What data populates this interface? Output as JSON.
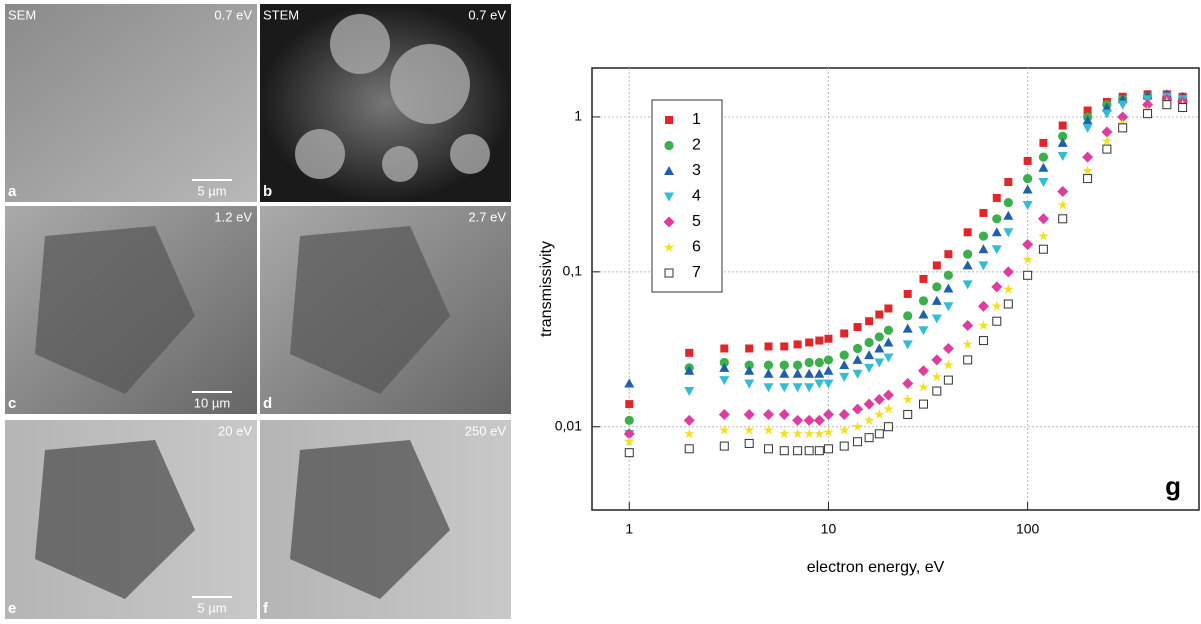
{
  "panels": [
    {
      "letter": "a",
      "mode": "SEM",
      "energy": "0.7 eV",
      "scale": "5 µm"
    },
    {
      "letter": "b",
      "mode": "STEM",
      "energy": "0.7 eV"
    },
    {
      "letter": "c",
      "energy": "1.2 eV",
      "scale": "10 µm"
    },
    {
      "letter": "d",
      "energy": "2.7 eV"
    },
    {
      "letter": "e",
      "energy": "20 eV",
      "scale": "5 µm"
    },
    {
      "letter": "f",
      "energy": "250 eV"
    }
  ],
  "chart_data": {
    "type": "scatter",
    "annotation": "g",
    "x_label": "electron energy, eV",
    "y_label": "transmissivity",
    "x_scale": "log",
    "y_scale": "log",
    "grid": true,
    "legend": "top-left",
    "xlim": [
      0.65,
      725
    ],
    "ylim": [
      0.0029,
      2.07
    ],
    "xticks": [
      1,
      10,
      100
    ],
    "yticks": [
      {
        "value": 0.01,
        "label": "0,01"
      },
      {
        "value": 0.1,
        "label": "0,1"
      },
      1
    ],
    "x": [
      1,
      2,
      3,
      4,
      5,
      6,
      7,
      8,
      9,
      10,
      12,
      14,
      16,
      18,
      20,
      25,
      30,
      35,
      40,
      50,
      60,
      70,
      80,
      100,
      120,
      150,
      200,
      250,
      300,
      400,
      500,
      600
    ],
    "series": [
      {
        "name": "1",
        "color": "#e0262b",
        "marker": "square",
        "values": [
          0.014,
          0.03,
          0.032,
          0.032,
          0.033,
          0.033,
          0.034,
          0.035,
          0.036,
          0.037,
          0.04,
          0.044,
          0.048,
          0.053,
          0.058,
          0.072,
          0.09,
          0.11,
          0.13,
          0.18,
          0.24,
          0.3,
          0.38,
          0.52,
          0.68,
          0.88,
          1.1,
          1.25,
          1.35,
          1.4,
          1.4,
          1.35
        ]
      },
      {
        "name": "2",
        "color": "#3bb04a",
        "marker": "circle",
        "values": [
          0.011,
          0.024,
          0.026,
          0.025,
          0.025,
          0.025,
          0.025,
          0.026,
          0.026,
          0.027,
          0.029,
          0.032,
          0.035,
          0.038,
          0.042,
          0.052,
          0.065,
          0.08,
          0.095,
          0.13,
          0.17,
          0.22,
          0.28,
          0.4,
          0.55,
          0.75,
          1.0,
          1.2,
          1.3,
          1.35,
          1.35,
          1.3
        ]
      },
      {
        "name": "3",
        "color": "#1f5fae",
        "marker": "triangle-up",
        "values": [
          0.019,
          0.023,
          0.024,
          0.023,
          0.022,
          0.022,
          0.022,
          0.022,
          0.022,
          0.023,
          0.025,
          0.027,
          0.029,
          0.032,
          0.035,
          0.043,
          0.053,
          0.065,
          0.078,
          0.11,
          0.14,
          0.18,
          0.23,
          0.34,
          0.47,
          0.68,
          0.95,
          1.15,
          1.3,
          1.38,
          1.4,
          1.35
        ]
      },
      {
        "name": "4",
        "color": "#33bcd6",
        "marker": "triangle-down",
        "values": [
          0.009,
          0.017,
          0.02,
          0.019,
          0.018,
          0.018,
          0.018,
          0.018,
          0.019,
          0.019,
          0.021,
          0.022,
          0.024,
          0.026,
          0.028,
          0.034,
          0.042,
          0.05,
          0.06,
          0.083,
          0.11,
          0.14,
          0.18,
          0.27,
          0.38,
          0.56,
          0.85,
          1.05,
          1.2,
          1.3,
          1.35,
          1.3
        ]
      },
      {
        "name": "5",
        "color": "#e03ca0",
        "marker": "diamond",
        "values": [
          0.009,
          0.011,
          0.012,
          0.012,
          0.012,
          0.012,
          0.011,
          0.011,
          0.011,
          0.012,
          0.012,
          0.013,
          0.014,
          0.015,
          0.016,
          0.019,
          0.023,
          0.027,
          0.032,
          0.045,
          0.06,
          0.08,
          0.1,
          0.15,
          0.22,
          0.33,
          0.55,
          0.8,
          1.0,
          1.2,
          1.3,
          1.25
        ]
      },
      {
        "name": "6",
        "color": "#f2e01a",
        "marker": "star",
        "values": [
          0.008,
          0.009,
          0.0095,
          0.0095,
          0.0095,
          0.009,
          0.009,
          0.009,
          0.009,
          0.0092,
          0.0095,
          0.01,
          0.011,
          0.012,
          0.013,
          0.015,
          0.018,
          0.021,
          0.025,
          0.034,
          0.045,
          0.06,
          0.077,
          0.12,
          0.17,
          0.27,
          0.45,
          0.7,
          0.9,
          1.1,
          1.25,
          1.2
        ]
      },
      {
        "name": "7",
        "color": "#333333",
        "marker": "square-open",
        "values": [
          0.0068,
          0.0072,
          0.0075,
          0.0078,
          0.0072,
          0.007,
          0.007,
          0.007,
          0.007,
          0.0072,
          0.0075,
          0.008,
          0.0085,
          0.009,
          0.01,
          0.012,
          0.014,
          0.017,
          0.02,
          0.027,
          0.036,
          0.048,
          0.062,
          0.095,
          0.14,
          0.22,
          0.4,
          0.62,
          0.85,
          1.05,
          1.2,
          1.15
        ]
      }
    ]
  }
}
